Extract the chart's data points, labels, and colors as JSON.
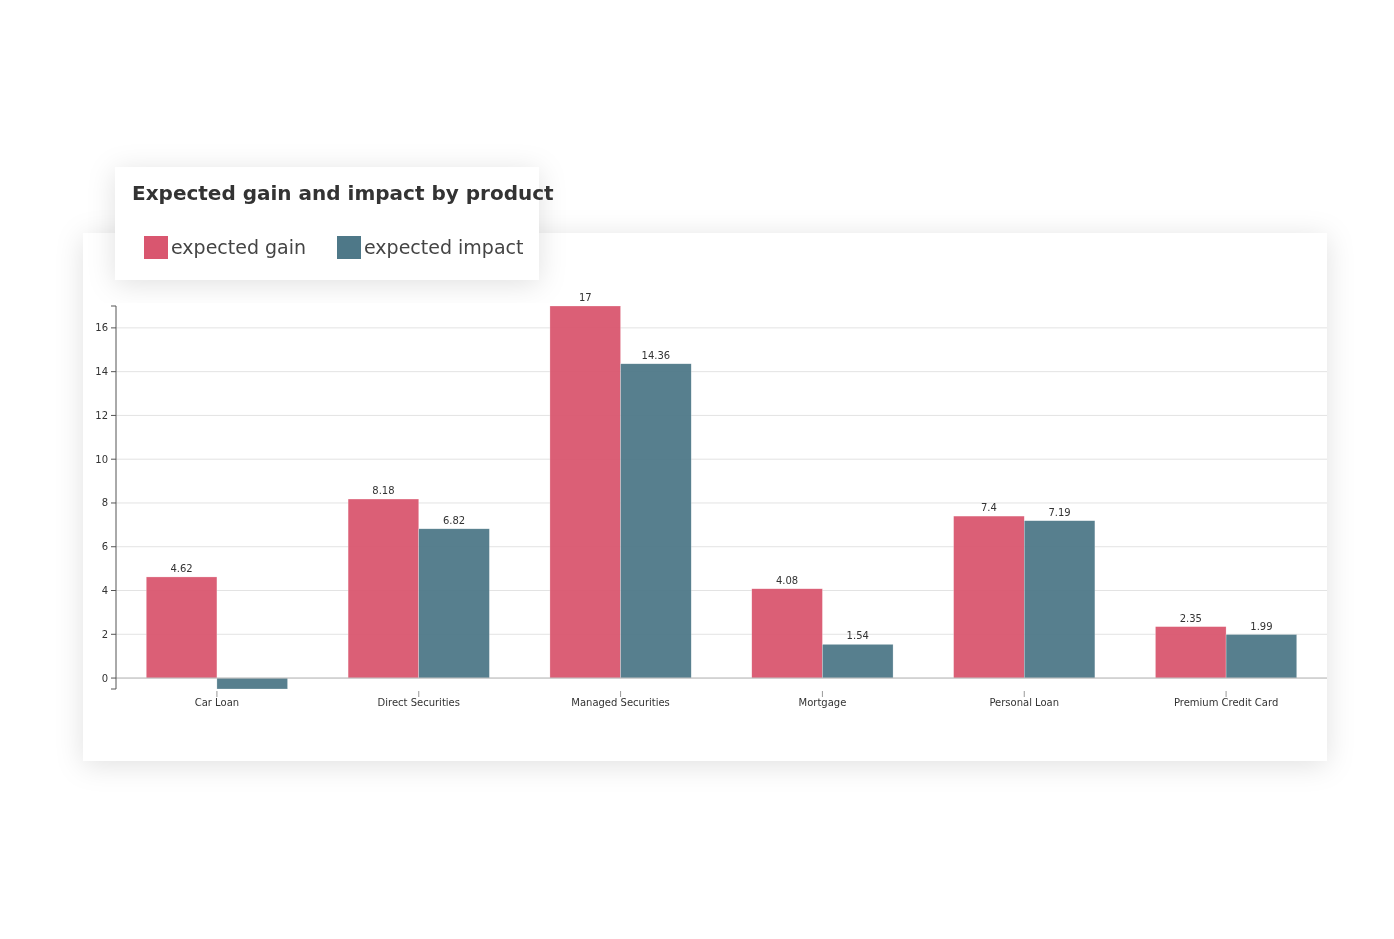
{
  "chart_data": {
    "type": "bar",
    "title": "Expected gain and impact by product",
    "categories": [
      "Car Loan",
      "Direct Securities",
      "Managed Securities",
      "Mortgage",
      "Personal Loan",
      "Premium Credit Card"
    ],
    "series": [
      {
        "name": "expected gain",
        "color": "#d9566f",
        "values": [
          4.62,
          8.18,
          17,
          4.08,
          7.4,
          2.35
        ],
        "value_labels": [
          "4.62",
          "8.18",
          "17",
          "4.08",
          "7.4",
          "2.35"
        ]
      },
      {
        "name": "expected impact",
        "color": "#4e7888",
        "values": [
          -0.5,
          6.82,
          14.36,
          1.54,
          7.19,
          1.99
        ],
        "value_labels": [
          null,
          "6.82",
          "14.36",
          "1.54",
          "7.19",
          "1.99"
        ]
      }
    ],
    "ylim": [
      -0.5,
      17
    ],
    "yticks": [
      0,
      2,
      4,
      6,
      8,
      10,
      12,
      14,
      16
    ],
    "grid": "y",
    "legend": "top left"
  }
}
